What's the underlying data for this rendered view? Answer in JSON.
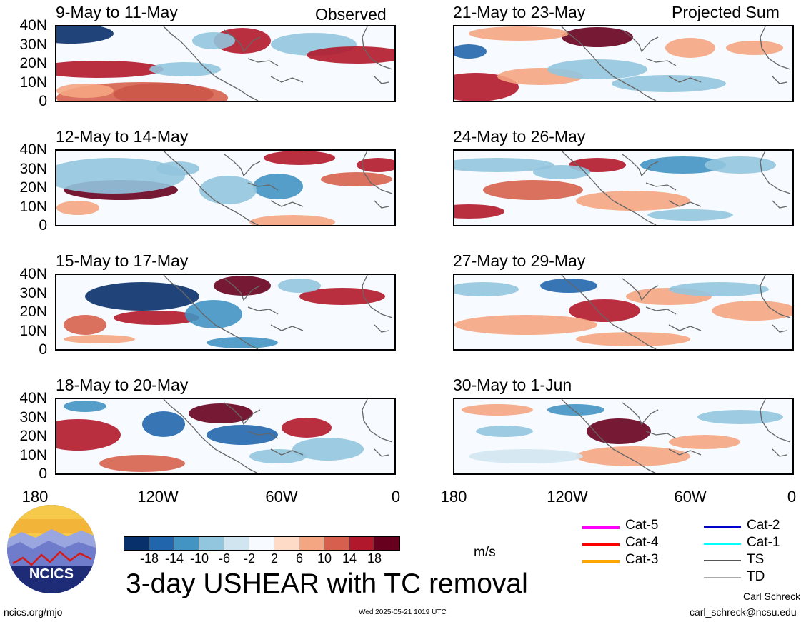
{
  "figure": {
    "title": "3-day USHEAR with TC removal",
    "units": "m/s",
    "left_column_tag": "Observed",
    "right_column_tag": "Projected Sum",
    "site": "ncics.org/mjo",
    "timestamp": "Wed 2025-05-21 1019 UTC",
    "author": "Carl Schreck",
    "email": "carl_schreck@ncsu.edu",
    "logo_text": "NCICS"
  },
  "panels": {
    "left": [
      "9-May to 11-May",
      "12-May to 14-May",
      "15-May to 17-May",
      "18-May to 20-May"
    ],
    "right": [
      "21-May to 23-May",
      "24-May to 26-May",
      "27-May to 29-May",
      "30-May to 1-Jun"
    ]
  },
  "axes": {
    "lat_labels": [
      "40N",
      "30N",
      "20N",
      "10N",
      "0"
    ],
    "lon_labels": [
      "180",
      "120W",
      "60W",
      "0"
    ]
  },
  "colorbar": {
    "labels": [
      "-18",
      "-14",
      "-10",
      "-6",
      "-2",
      "2",
      "6",
      "10",
      "14",
      "18"
    ],
    "colors": [
      "#08306b",
      "#2166ac",
      "#4393c3",
      "#92c5de",
      "#d1e5f0",
      "#f7fbff",
      "#fddbc7",
      "#f4a582",
      "#d6604d",
      "#b2182b",
      "#67001f"
    ]
  },
  "legend": {
    "items": [
      {
        "label": "Cat-5",
        "color": "#ff00ff"
      },
      {
        "label": "Cat-4",
        "color": "#ff0000"
      },
      {
        "label": "Cat-3",
        "color": "#ffa500"
      },
      {
        "label": "Cat-2",
        "color": "#0000cd"
      },
      {
        "label": "Cat-1",
        "color": "#00ffff"
      },
      {
        "label": "TS",
        "color": "#555555"
      },
      {
        "label": "TD",
        "color": "#aaaaaa"
      }
    ]
  }
}
